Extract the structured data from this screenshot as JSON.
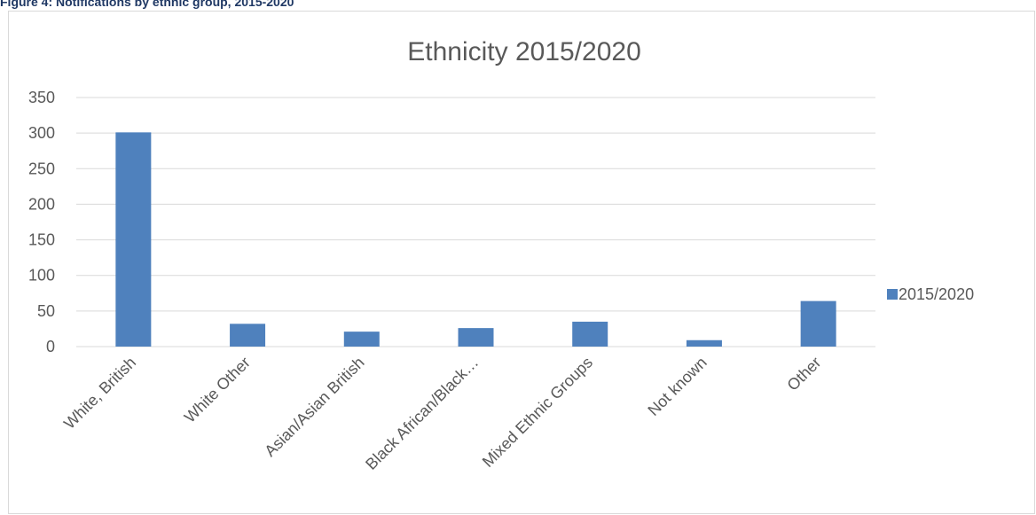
{
  "figure_caption": "Figure 4: Notifications by ethnic group, 2015-2020",
  "colors": {
    "bar": "#4f81bd",
    "gridline": "#d9d9d9",
    "text": "#595959"
  },
  "chart_data": {
    "type": "bar",
    "title": "Ethnicity 2015/2020",
    "categories": [
      "White, British",
      "White Other",
      "Asian/Asian British",
      "Black African/Black…",
      "Mixed Ethnic Groups",
      "Not known",
      "Other"
    ],
    "series": [
      {
        "name": "2015/2020",
        "values": [
          301,
          32,
          21,
          26,
          35,
          9,
          64
        ]
      }
    ],
    "xlabel": "",
    "ylabel": "",
    "ylim": [
      0,
      350
    ],
    "yticks": [
      0,
      50,
      100,
      150,
      200,
      250,
      300,
      350
    ],
    "grid": true,
    "legend_position": "right"
  }
}
